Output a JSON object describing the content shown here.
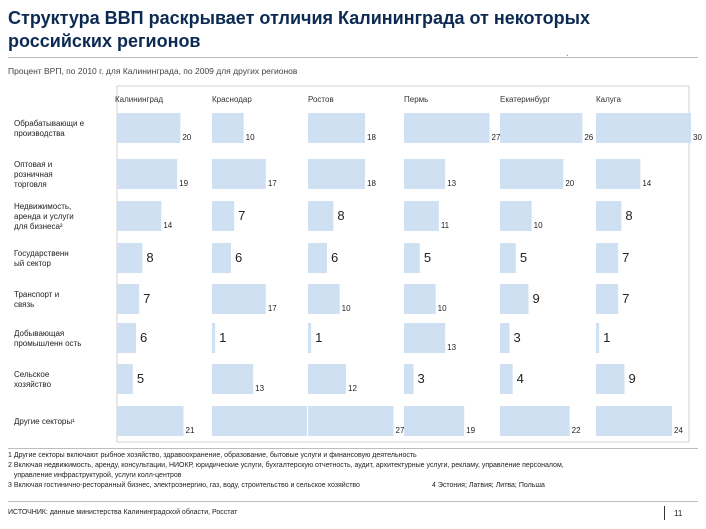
{
  "title": "Структура ВВП раскрывает отличия Калининграда от некоторых российских регионов",
  "subtitle": "Процент ВРП, по 2010 г. для Калининграда, по 2009 для других регионов",
  "footnotes": [
    "1 Другие секторы включают рыбное хозяйство, здравоохранение, образование, бытовые услуги и финансовую деятельность",
    "2 Включая недвижимость, аренду, консультации, НИОКР, юридические услуги, бухгалтерскую отчетность, аудит, архитектурные услуги, рекламу, управление персоналом,",
    "   управление инфраструктурой, услуги колл-центров",
    "3 Включая гостинично-ресторанный бизнес, электроэнергию, газ, воду, строительство и сельское хозяйство",
    "4 Эстония; Латвия; Литва; Польша"
  ],
  "source": "ИСТОЧНИК: данные министерства Калининградской области, Росстат",
  "page_number": "11",
  "colors": {
    "bar": "#cfe0f3",
    "title": "#0c2a52",
    "frame": "#d2d2d2"
  },
  "chart_data": {
    "type": "bar",
    "orientation": "horizontal",
    "layout": "small-multiples",
    "categories": [
      "Обрабатывающи е производства",
      "Оптовая и розничная торговля",
      "Недвижимость, аренда и услуги для бизнеса²",
      "Государственн ый сектор",
      "Транспорт и связь",
      "Добывающая промышленн ость",
      "Сельское хозяйство",
      "Другие секторы¹"
    ],
    "series": [
      {
        "name": "Калининград",
        "values": [
          20,
          19,
          14,
          8,
          7,
          6,
          5,
          21
        ]
      },
      {
        "name": "Краснодар",
        "values": [
          10,
          17,
          7,
          6,
          17,
          1,
          13,
          30
        ]
      },
      {
        "name": "Ростов",
        "values": [
          18,
          18,
          8,
          6,
          10,
          1,
          12,
          27
        ]
      },
      {
        "name": "Пермь",
        "values": [
          27,
          13,
          11,
          5,
          10,
          13,
          3,
          19
        ]
      },
      {
        "name": "Екатеринбург",
        "values": [
          26,
          20,
          10,
          5,
          9,
          3,
          4,
          22
        ]
      },
      {
        "name": "Калуга",
        "values": [
          30,
          14,
          8,
          7,
          7,
          1,
          9,
          24
        ]
      }
    ],
    "xlabel": "",
    "ylabel": "",
    "xlim": [
      0,
      30
    ],
    "grid": false,
    "legend": "none"
  }
}
